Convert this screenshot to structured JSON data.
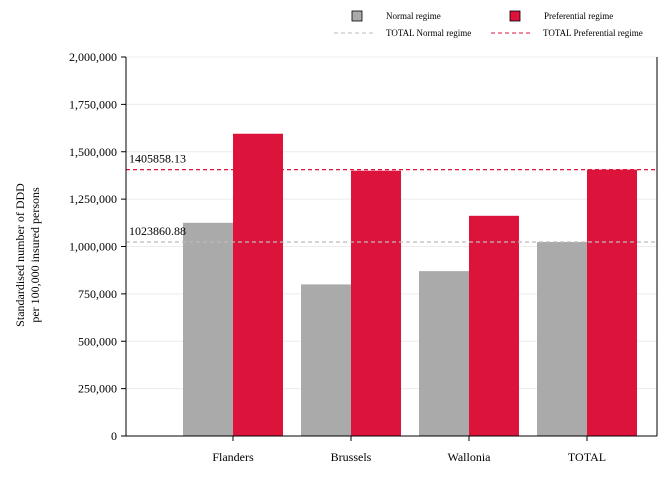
{
  "chart_data": {
    "type": "bar",
    "categories": [
      "Flanders",
      "Brussels",
      "Wallonia",
      "TOTAL"
    ],
    "series": [
      {
        "name": "Normal regime",
        "color": "#aaaaaa",
        "values": [
          1125000,
          800000,
          870000,
          1023860.88
        ]
      },
      {
        "name": "Preferential regime",
        "color": "#dc143c",
        "values": [
          1595000,
          1400000,
          1162000,
          1405858.13
        ]
      }
    ],
    "reference_lines": [
      {
        "name": "TOTAL Normal regime",
        "value": 1023860.88,
        "label": "1023860.88",
        "color": "#bbbbbb",
        "style": "dashed"
      },
      {
        "name": "TOTAL Preferential regime",
        "value": 1405858.13,
        "label": "1405858.13",
        "color": "#dc143c",
        "style": "dashed"
      }
    ],
    "ylabel_lines": [
      "Standardised number of DDD",
      "per 100,000 insured persons"
    ],
    "xlabel": "",
    "ylim": [
      0,
      2000000
    ],
    "yticks": [
      0,
      250000,
      500000,
      750000,
      1000000,
      1250000,
      1500000,
      1750000,
      2000000
    ],
    "ytick_labels": [
      "0",
      "250,000",
      "500,000",
      "750,000",
      "1,000,000",
      "1,250,000",
      "1,500,000",
      "1,750,000",
      "2,000,000"
    ],
    "grid": true,
    "legend_position": "top-right"
  }
}
